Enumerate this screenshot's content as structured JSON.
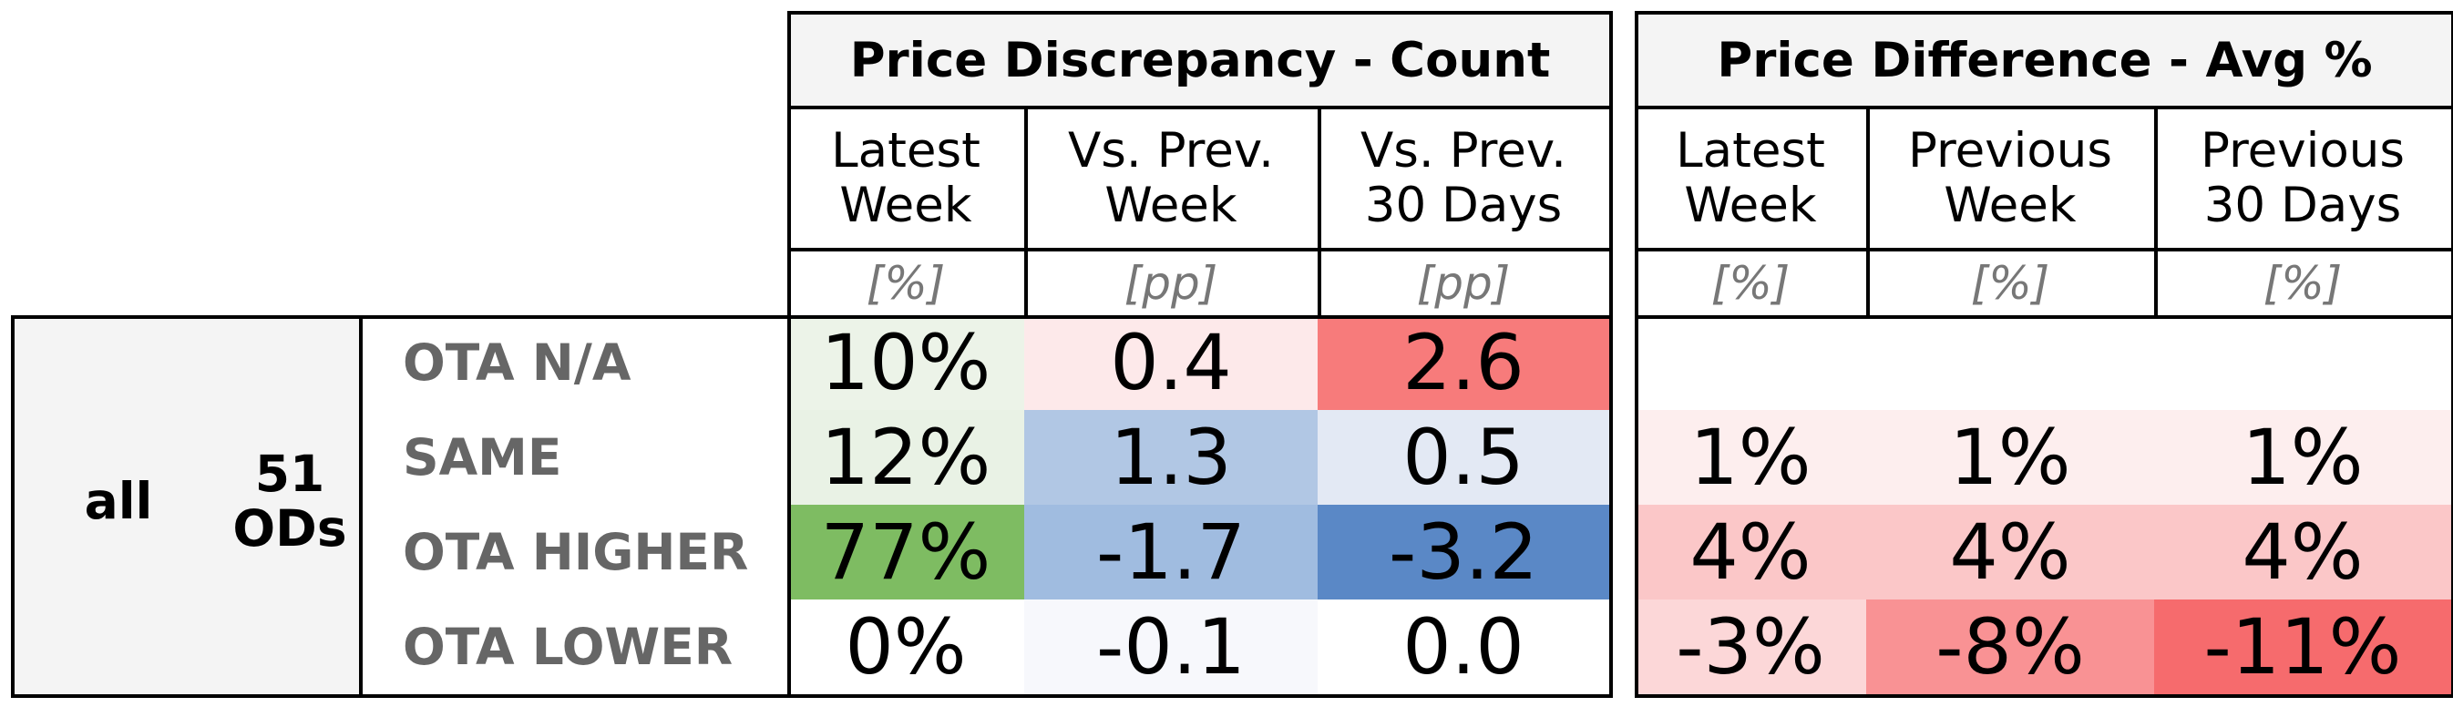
{
  "chart_data": {
    "type": "table",
    "row_group": {
      "segment": "all",
      "count": "51\nODs"
    },
    "row_labels": [
      "OTA N/A",
      "SAME",
      "OTA HIGHER",
      "OTA LOWER"
    ],
    "panels": [
      {
        "title": "Price Discrepancy - Count",
        "columns": [
          {
            "header": "Latest\nWeek",
            "unit": "[%]"
          },
          {
            "header": "Vs. Prev.\nWeek",
            "unit": "[pp]"
          },
          {
            "header": "Vs. Prev.\n30 Days",
            "unit": "[pp]"
          }
        ],
        "rows": [
          [
            {
              "text": "10%",
              "bg": "#ecf3e8"
            },
            {
              "text": "0.4",
              "bg": "#fde9ea"
            },
            {
              "text": "2.6",
              "bg": "#f77b7b"
            }
          ],
          [
            {
              "text": "12%",
              "bg": "#e9f2e5"
            },
            {
              "text": "1.3",
              "bg": "#b1c7e4"
            },
            {
              "text": "0.5",
              "bg": "#e3e9f4"
            }
          ],
          [
            {
              "text": "77%",
              "bg": "#7ebc62"
            },
            {
              "text": "-1.7",
              "bg": "#a0bce0"
            },
            {
              "text": "-3.2",
              "bg": "#5a88c6"
            }
          ],
          [
            {
              "text": "0%",
              "bg": "#ffffff"
            },
            {
              "text": "-0.1",
              "bg": "#f7f8fc"
            },
            {
              "text": "0.0",
              "bg": "#ffffff"
            }
          ]
        ]
      },
      {
        "title": "Price Difference - Avg %",
        "columns": [
          {
            "header": "Latest\nWeek",
            "unit": "[%]"
          },
          {
            "header": "Previous\nWeek",
            "unit": "[%]"
          },
          {
            "header": "Previous\n30 Days",
            "unit": "[%]"
          }
        ],
        "rows": [
          [
            {
              "text": "",
              "bg": "#ffffff"
            },
            {
              "text": "",
              "bg": "#ffffff"
            },
            {
              "text": "",
              "bg": "#ffffff"
            }
          ],
          [
            {
              "text": "1%",
              "bg": "#fdeeee"
            },
            {
              "text": "1%",
              "bg": "#fdeeee"
            },
            {
              "text": "1%",
              "bg": "#fdeeee"
            }
          ],
          [
            {
              "text": "4%",
              "bg": "#fbc7c8"
            },
            {
              "text": "4%",
              "bg": "#fbc7c8"
            },
            {
              "text": "4%",
              "bg": "#fbc7c8"
            }
          ],
          [
            {
              "text": "-3%",
              "bg": "#fcd7d8"
            },
            {
              "text": "-8%",
              "bg": "#f99294"
            },
            {
              "text": "-11%",
              "bg": "#f66b6d"
            }
          ]
        ]
      }
    ]
  }
}
